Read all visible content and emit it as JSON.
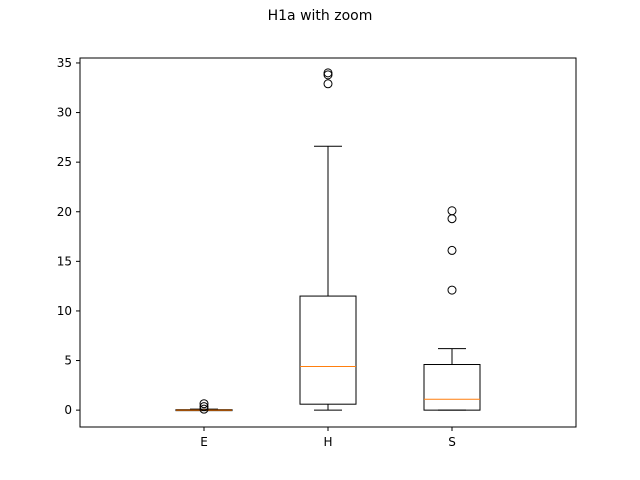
{
  "figure": {
    "title": "H1a with zoom"
  },
  "chart_data": {
    "type": "box",
    "title": "H1a with zoom",
    "xlabel": "",
    "ylabel": "",
    "categories": [
      "E",
      "H",
      "S"
    ],
    "ylim": [
      -1.7,
      35.5
    ],
    "yticks": [
      0,
      5,
      10,
      15,
      20,
      25,
      30,
      35
    ],
    "grid": false,
    "boxes": [
      {
        "name": "E",
        "whisker_low": 0.0,
        "q1": 0.0,
        "median": 0.0,
        "q3": 0.05,
        "whisker_high": 0.1,
        "outliers": [
          0.1,
          0.35,
          0.65
        ]
      },
      {
        "name": "H",
        "whisker_low": 0.0,
        "q1": 0.6,
        "median": 4.4,
        "q3": 11.5,
        "whisker_high": 26.6,
        "outliers": [
          32.9,
          33.8,
          34.0
        ]
      },
      {
        "name": "S",
        "whisker_low": 0.0,
        "q1": 0.0,
        "median": 1.1,
        "q3": 4.6,
        "whisker_high": 6.2,
        "outliers": [
          12.1,
          16.1,
          19.3,
          20.1
        ]
      }
    ],
    "colors": {
      "box": "#000000",
      "median": "#ff7f0e"
    }
  }
}
